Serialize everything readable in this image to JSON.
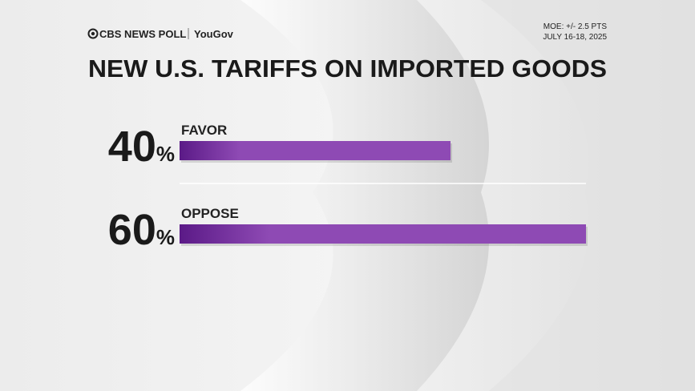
{
  "chart_data": {
    "type": "bar",
    "orientation": "horizontal",
    "source": "CBS NEWS POLL",
    "partner": "YouGov",
    "moe": "MOE: +/- 2.5 PTS",
    "dates": "JULY 16-18, 2025",
    "title": "NEW U.S. TARIFFS ON IMPORTED GOODS",
    "categories": [
      "FAVOR",
      "OPPOSE"
    ],
    "values": [
      40,
      60
    ],
    "value_labels": [
      "40%",
      "60%"
    ],
    "color": "#8e4ab4"
  }
}
